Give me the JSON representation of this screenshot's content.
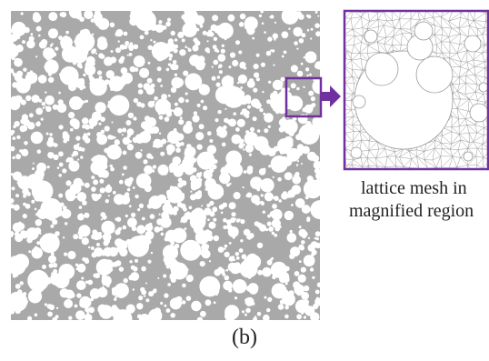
{
  "figure": {
    "panel_label": "(b)",
    "inset_caption_line1": "lattice mesh in",
    "inset_caption_line2": "magnified region",
    "colors": {
      "matrix_gray": "#a9a9a9",
      "inclusion_white": "#ffffff",
      "highlight_purple": "#7030a0",
      "mesh_line": "#9a9a9a"
    }
  }
}
